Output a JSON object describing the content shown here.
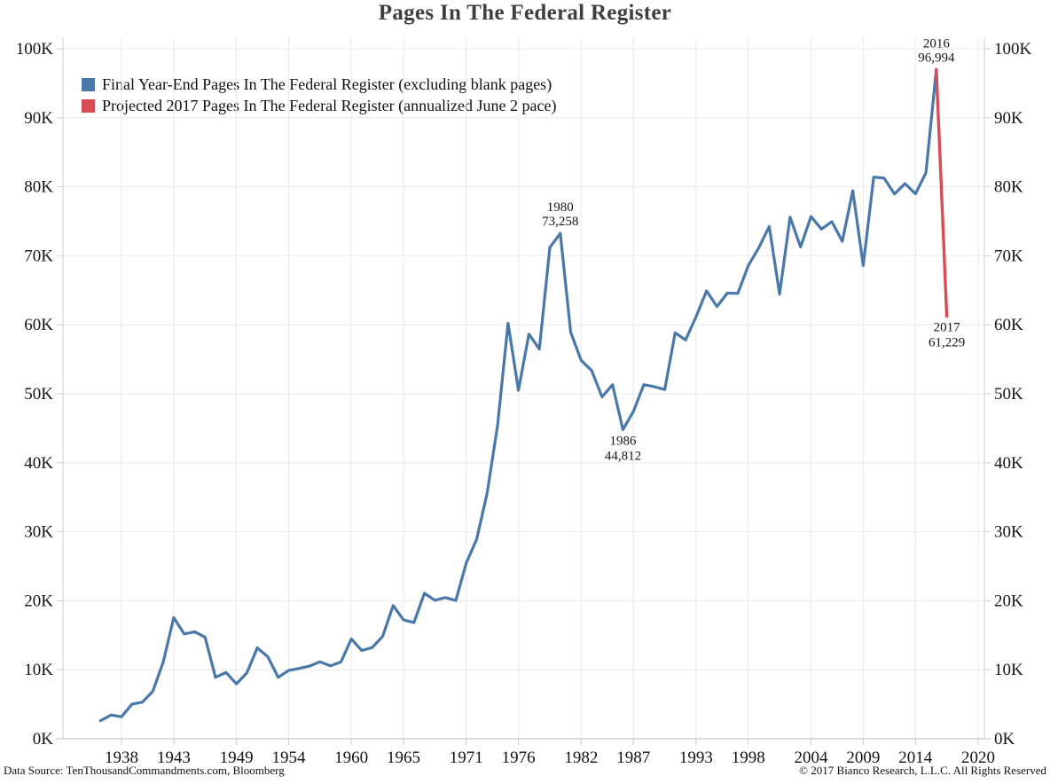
{
  "title": "Pages In The Federal Register",
  "legend": [
    {
      "id": "final",
      "label": "Final Year-End Pages In The Federal Register (excluding blank pages)",
      "color": "#4a78a8"
    },
    {
      "id": "projected",
      "label": "Projected 2017 Pages In The Federal Register (annualized June 2 pace)",
      "color": "#d84d55"
    }
  ],
  "footer": {
    "left": "Data Source: TenThousandCommandments.com, Bloomberg",
    "right": "© 2017 Bianco Research, L.L.C. All Rights Reserved"
  },
  "colors": {
    "grid": "#eaeaea",
    "axis_frame": "#cccccc",
    "axis_bottom": "#bdbdbd",
    "tick_text": "#141414",
    "annotation_blue": "#6d8fb9",
    "annotation_red": "#e07377"
  },
  "chart_data": {
    "type": "line",
    "title": "Pages In The Federal Register",
    "xlabel": "",
    "ylabel": "",
    "grid": true,
    "legend_position": "top-left",
    "xlim": [
      1932.4,
      2020.6
    ],
    "ylim": [
      0,
      100000
    ],
    "series": [
      {
        "id": "final",
        "name": "Final Year-End Pages In The Federal Register (excluding blank pages)",
        "color": "#4a78a8",
        "stroke_width": 3.2,
        "x": [
          1936,
          1937,
          1938,
          1939,
          1940,
          1941,
          1942,
          1943,
          1944,
          1945,
          1946,
          1947,
          1948,
          1949,
          1950,
          1951,
          1952,
          1953,
          1954,
          1955,
          1956,
          1957,
          1958,
          1959,
          1960,
          1961,
          1962,
          1963,
          1964,
          1965,
          1966,
          1967,
          1968,
          1969,
          1970,
          1971,
          1972,
          1973,
          1974,
          1975,
          1976,
          1977,
          1978,
          1979,
          1980,
          1981,
          1982,
          1983,
          1984,
          1985,
          1986,
          1987,
          1988,
          1989,
          1990,
          1991,
          1992,
          1993,
          1994,
          1995,
          1996,
          1997,
          1998,
          1999,
          2000,
          2001,
          2002,
          2003,
          2004,
          2005,
          2006,
          2007,
          2008,
          2009,
          2010,
          2011,
          2012,
          2013,
          2014,
          2015,
          2016
        ],
        "values": [
          2620,
          3450,
          3194,
          5007,
          5307,
          6877,
          11134,
          17553,
          15194,
          15508,
          14736,
          8902,
          9608,
          7952,
          9562,
          13175,
          11896,
          8912,
          9910,
          10196,
          10528,
          11156,
          10579,
          11116,
          14479,
          12792,
          13226,
          14842,
          19304,
          17206,
          16850,
          21088,
          20072,
          20466,
          20036,
          25447,
          28924,
          35592,
          45422,
          60221,
          50505,
          58648,
          56479,
          71191,
          73258,
          58932,
          54842,
          53376,
          49536,
          51308,
          44812,
          47418,
          51327,
          51012,
          50616,
          58838,
          57803,
          61166,
          64914,
          62645,
          64591,
          64549,
          68571,
          71161,
          74258,
          64431,
          75606,
          71269,
          75676,
          73870,
          74937,
          72090,
          79435,
          68598,
          81405,
          81247,
          78961,
          80462,
          78978,
          82036,
          96994
        ]
      },
      {
        "id": "projected",
        "name": "Projected 2017 Pages In The Federal Register (annualized June 2 pace)",
        "color": "#d84d55",
        "stroke_width": 3.4,
        "x": [
          2016,
          2017
        ],
        "values": [
          96994,
          61229
        ]
      }
    ],
    "x_ticks": [
      {
        "label": "1938",
        "year": 1938
      },
      {
        "label": "1943",
        "year": 1943
      },
      {
        "label": "1949",
        "year": 1949
      },
      {
        "label": "1954",
        "year": 1954
      },
      {
        "label": "1960",
        "year": 1960
      },
      {
        "label": "1965",
        "year": 1965
      },
      {
        "label": "1971",
        "year": 1971
      },
      {
        "label": "1976",
        "year": 1976
      },
      {
        "label": "1982",
        "year": 1982
      },
      {
        "label": "1987",
        "year": 1987
      },
      {
        "label": "1993",
        "year": 1993
      },
      {
        "label": "1998",
        "year": 1998
      },
      {
        "label": "2004",
        "year": 2004
      },
      {
        "label": "2009",
        "year": 2009
      },
      {
        "label": "2014",
        "year": 2014
      },
      {
        "label": "2020",
        "year": 2020
      }
    ],
    "y_ticks": [
      {
        "label": "0K",
        "value": 0
      },
      {
        "label": "10K",
        "value": 10000
      },
      {
        "label": "20K",
        "value": 20000
      },
      {
        "label": "30K",
        "value": 30000
      },
      {
        "label": "40K",
        "value": 40000
      },
      {
        "label": "50K",
        "value": 50000
      },
      {
        "label": "60K",
        "value": 60000
      },
      {
        "label": "70K",
        "value": 70000
      },
      {
        "label": "80K",
        "value": 80000
      },
      {
        "label": "90K",
        "value": 90000
      },
      {
        "label": "100K",
        "value": 100000
      }
    ],
    "annotations": [
      {
        "year_label": "1980",
        "value_label": "73,258",
        "year": 1980,
        "value": 73258,
        "placement": "above",
        "color": "#6d8fb9"
      },
      {
        "year_label": "1986",
        "value_label": "44,812",
        "year": 1986,
        "value": 44812,
        "placement": "below",
        "color": "#6d8fb9"
      },
      {
        "year_label": "2016",
        "value_label": "96,994",
        "year": 2016,
        "value": 96994,
        "placement": "above",
        "color": "#6d8fb9"
      },
      {
        "year_label": "2017",
        "value_label": "61,229",
        "year": 2017,
        "value": 61229,
        "placement": "below",
        "color": "#e07377"
      }
    ]
  }
}
